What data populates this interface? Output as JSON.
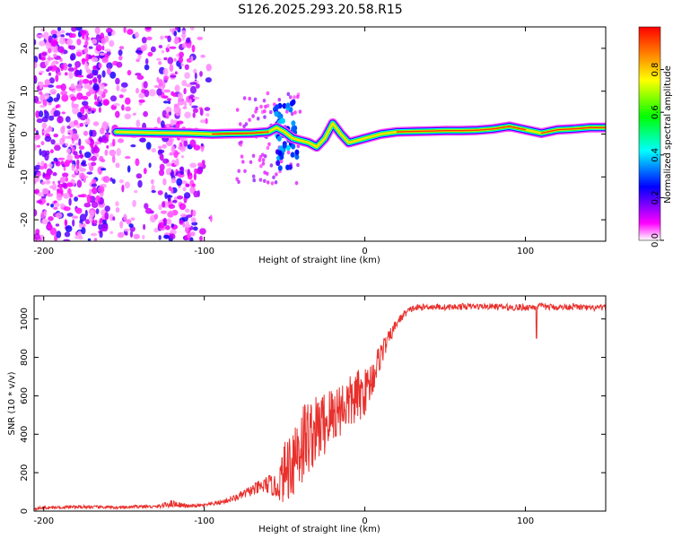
{
  "figure_title": "S126.2025.293.20.58.R15",
  "chart_data": [
    {
      "type": "heatmap",
      "title": "S126.2025.293.20.58.R15",
      "xlabel": "Height of straight line (km)",
      "ylabel": "Frequency (Hz)",
      "xlim": [
        -206,
        150
      ],
      "ylim": [
        -25,
        25
      ],
      "xticks": [
        -200,
        -100,
        0,
        100
      ],
      "yticks": [
        -20,
        -10,
        0,
        10,
        20
      ],
      "colorbar": {
        "label": "Normalized spectral amplitude",
        "range": [
          0,
          1
        ],
        "ticks": [
          0.0,
          0.2,
          0.4,
          0.6,
          0.8
        ],
        "colormap": [
          "#ffffff",
          "#ff00ff",
          "#0000ff",
          "#00ffff",
          "#00ff00",
          "#ffff00",
          "#ff0000"
        ]
      },
      "ridge": {
        "description": "Doppler frequency ridge (peak amplitude) vs height",
        "x": [
          -155,
          -130,
          -110,
          -95,
          -85,
          -70,
          -60,
          -55,
          -50,
          -45,
          -40,
          -35,
          -30,
          -25,
          -20,
          -15,
          -10,
          -5,
          0,
          10,
          20,
          30,
          40,
          50,
          60,
          70,
          80,
          90,
          100,
          110,
          120,
          130,
          140,
          150
        ],
        "freq": [
          0.5,
          0.3,
          0.2,
          0.0,
          0.1,
          0.2,
          0.5,
          1.5,
          0.5,
          -1.0,
          -1.5,
          -2.0,
          -3.0,
          -1.0,
          2.5,
          0.0,
          -2.0,
          -1.5,
          -1.0,
          0.0,
          0.5,
          0.6,
          0.7,
          0.8,
          0.8,
          0.9,
          1.2,
          1.8,
          1.0,
          0.2,
          1.0,
          1.2,
          1.5,
          1.5
        ],
        "amplitude": [
          0.5,
          0.6,
          0.55,
          0.85,
          0.9,
          0.9,
          0.7,
          0.4,
          0.4,
          0.5,
          0.5,
          0.6,
          0.7,
          0.6,
          0.6,
          0.55,
          0.6,
          0.6,
          0.55,
          0.7,
          0.75,
          0.8,
          0.8,
          0.8,
          0.8,
          0.8,
          0.85,
          0.85,
          0.75,
          0.7,
          0.8,
          0.8,
          0.8,
          0.8
        ]
      }
    },
    {
      "type": "line",
      "title": "",
      "xlabel": "Height of straight line (km)",
      "ylabel": "SNR (10 * v/v)",
      "xlim": [
        -206,
        150
      ],
      "ylim": [
        0,
        1120
      ],
      "xticks": [
        -200,
        -100,
        0,
        100
      ],
      "yticks": [
        0,
        200,
        400,
        600,
        800,
        1000
      ],
      "series": [
        {
          "name": "SNR",
          "color": "#e8302c",
          "x": [
            -206,
            -190,
            -175,
            -160,
            -150,
            -140,
            -130,
            -120,
            -110,
            -100,
            -90,
            -80,
            -70,
            -60,
            -55,
            -50,
            -45,
            -40,
            -35,
            -30,
            -25,
            -20,
            -15,
            -10,
            -5,
            0,
            5,
            10,
            15,
            20,
            25,
            30,
            40,
            50,
            60,
            70,
            80,
            90,
            100,
            110,
            120,
            130,
            140,
            150
          ],
          "y": [
            15,
            20,
            22,
            20,
            18,
            25,
            22,
            40,
            25,
            30,
            45,
            70,
            110,
            140,
            120,
            200,
            280,
            350,
            390,
            420,
            460,
            500,
            540,
            560,
            590,
            620,
            700,
            820,
            900,
            980,
            1030,
            1055,
            1065,
            1060,
            1065,
            1065,
            1065,
            1060,
            1060,
            1065,
            1060,
            1065,
            1055,
            1060
          ],
          "noise": [
            8,
            8,
            8,
            8,
            8,
            8,
            8,
            20,
            8,
            8,
            12,
            18,
            30,
            50,
            60,
            160,
            220,
            250,
            200,
            180,
            180,
            160,
            150,
            140,
            150,
            120,
            100,
            70,
            40,
            25,
            20,
            18,
            16,
            16,
            16,
            16,
            16,
            18,
            18,
            18,
            16,
            16,
            16,
            16
          ]
        }
      ]
    }
  ]
}
